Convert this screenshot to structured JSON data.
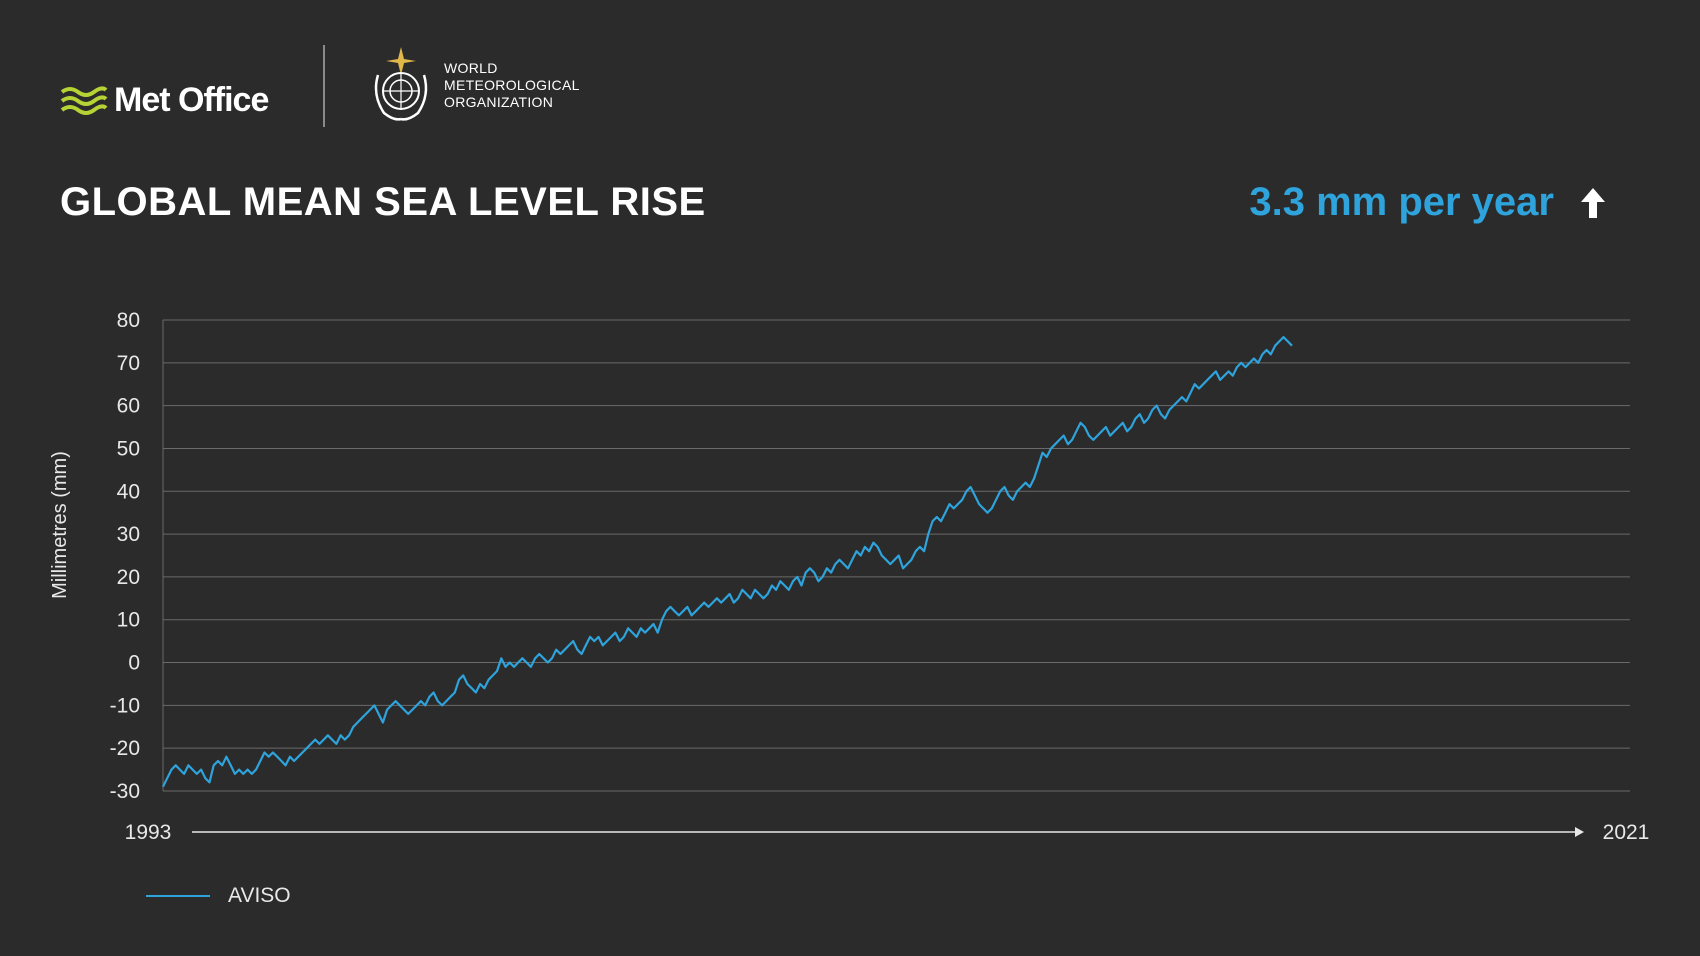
{
  "header": {
    "metoffice_label": "Met Office",
    "wmo_lines": [
      "WORLD",
      "METEOROLOGICAL",
      "ORGANIZATION"
    ]
  },
  "title": "GLOBAL MEAN SEA LEVEL RISE",
  "rate": "3.3 mm per year",
  "colors": {
    "line": "#2ea3dc",
    "background": "#2b2b2b",
    "grid": "#6a6a6a",
    "accent_green": "#b5d334"
  },
  "legend": {
    "label": "AVISO"
  },
  "chart_data": {
    "type": "line",
    "title": "GLOBAL MEAN SEA LEVEL RISE",
    "ylabel": "Millimetres (mm)",
    "xlabel": "",
    "ylim": [
      -30,
      80
    ],
    "yticks": [
      80,
      70,
      60,
      50,
      40,
      30,
      20,
      10,
      0,
      -10,
      -20,
      -30
    ],
    "x_start_label": "1993",
    "x_end_label": "2021",
    "xlim": [
      1993,
      2021.9
    ],
    "grid": true,
    "legend_position": "bottom-left",
    "series": [
      {
        "name": "AVISO",
        "x_start": 1993.0,
        "x_step": 0.0833,
        "values": [
          -29,
          -27,
          -25,
          -24,
          -25,
          -26,
          -24,
          -25,
          -26,
          -25,
          -27,
          -28,
          -24,
          -23,
          -24,
          -22,
          -24,
          -26,
          -25,
          -26,
          -25,
          -26,
          -25,
          -23,
          -21,
          -22,
          -21,
          -22,
          -23,
          -24,
          -22,
          -23,
          -22,
          -21,
          -20,
          -19,
          -18,
          -19,
          -18,
          -17,
          -18,
          -19,
          -17,
          -18,
          -17,
          -15,
          -14,
          -13,
          -12,
          -11,
          -10,
          -12,
          -14,
          -11,
          -10,
          -9,
          -10,
          -11,
          -12,
          -11,
          -10,
          -9,
          -10,
          -8,
          -7,
          -9,
          -10,
          -9,
          -8,
          -7,
          -4,
          -3,
          -5,
          -6,
          -7,
          -5,
          -6,
          -4,
          -3,
          -2,
          1,
          -1,
          0,
          -1,
          0,
          1,
          0,
          -1,
          1,
          2,
          1,
          0,
          1,
          3,
          2,
          3,
          4,
          5,
          3,
          2,
          4,
          6,
          5,
          6,
          4,
          5,
          6,
          7,
          5,
          6,
          8,
          7,
          6,
          8,
          7,
          8,
          9,
          7,
          10,
          12,
          13,
          12,
          11,
          12,
          13,
          11,
          12,
          13,
          14,
          13,
          14,
          15,
          14,
          15,
          16,
          14,
          15,
          17,
          16,
          15,
          17,
          16,
          15,
          16,
          18,
          17,
          19,
          18,
          17,
          19,
          20,
          18,
          21,
          22,
          21,
          19,
          20,
          22,
          21,
          23,
          24,
          23,
          22,
          24,
          26,
          25,
          27,
          26,
          28,
          27,
          25,
          24,
          23,
          24,
          25,
          22,
          23,
          24,
          26,
          27,
          26,
          30,
          33,
          34,
          33,
          35,
          37,
          36,
          37,
          38,
          40,
          41,
          39,
          37,
          36,
          35,
          36,
          38,
          40,
          41,
          39,
          38,
          40,
          41,
          42,
          41,
          43,
          46,
          49,
          48,
          50,
          51,
          52,
          53,
          51,
          52,
          54,
          56,
          55,
          53,
          52,
          53,
          54,
          55,
          53,
          54,
          55,
          56,
          54,
          55,
          57,
          58,
          56,
          57,
          59,
          60,
          58,
          57,
          59,
          60,
          61,
          62,
          61,
          63,
          65,
          64,
          65,
          66,
          67,
          68,
          66,
          67,
          68,
          67,
          69,
          70,
          69,
          70,
          71,
          70,
          72,
          73,
          72,
          74,
          75,
          76,
          75,
          74
        ]
      }
    ]
  }
}
